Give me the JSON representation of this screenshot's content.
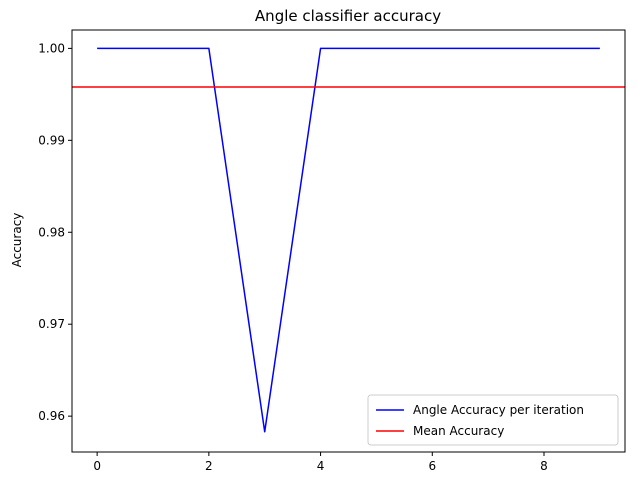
{
  "chart_data": {
    "type": "line",
    "title": "Angle classifier accuracy",
    "xlabel": "",
    "ylabel": "Accuracy",
    "xlim": [
      -0.45,
      9.45
    ],
    "ylim": [
      0.9561,
      1.002
    ],
    "x_ticks": [
      0,
      2,
      4,
      6,
      8
    ],
    "x_tick_labels": [
      "0",
      "2",
      "4",
      "6",
      "8"
    ],
    "y_ticks": [
      0.96,
      0.97,
      0.98,
      0.99,
      1.0
    ],
    "y_tick_labels": [
      "0.96",
      "0.97",
      "0.98",
      "0.99",
      "1.00"
    ],
    "grid": false,
    "legend_position": "lower-right",
    "series": [
      {
        "name": "Angle Accuracy per iteration",
        "color": "#0000ff",
        "x": [
          0,
          1,
          2,
          3,
          4,
          5,
          6,
          7,
          8,
          9
        ],
        "y": [
          1.0,
          1.0,
          1.0,
          0.9583,
          1.0,
          1.0,
          1.0,
          1.0,
          1.0,
          1.0
        ]
      }
    ],
    "hlines": [
      {
        "name": "Mean Accuracy",
        "color": "#ff0000",
        "y": 0.9958
      }
    ]
  }
}
